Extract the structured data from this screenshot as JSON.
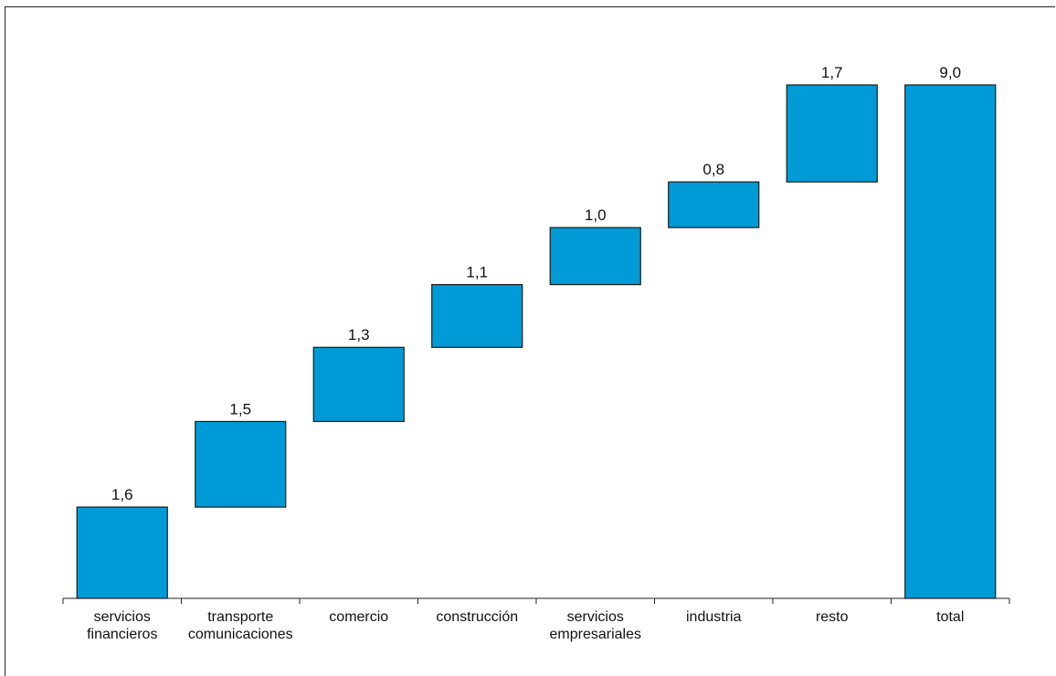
{
  "chart_data": {
    "type": "bar",
    "subtype": "waterfall",
    "title": "",
    "xlabel": "",
    "ylabel": "",
    "ylim": [
      0,
      9.8
    ],
    "grid": false,
    "legend": "none",
    "bar_color": "#009bd6",
    "categories": [
      [
        "servicios",
        "financieros"
      ],
      [
        "transporte",
        "comunicaciones"
      ],
      [
        "comercio"
      ],
      [
        "construcción"
      ],
      [
        "servicios",
        "empresariales"
      ],
      [
        "industria"
      ],
      [
        "resto"
      ],
      [
        "total"
      ]
    ],
    "values": [
      1.6,
      1.5,
      1.3,
      1.1,
      1.0,
      0.8,
      1.7,
      9.0
    ],
    "value_labels": [
      "1,6",
      "1,5",
      "1,3",
      "1,1",
      "1,0",
      "0,8",
      "1,7",
      "9,0"
    ],
    "is_total": [
      false,
      false,
      false,
      false,
      false,
      false,
      false,
      true
    ]
  }
}
